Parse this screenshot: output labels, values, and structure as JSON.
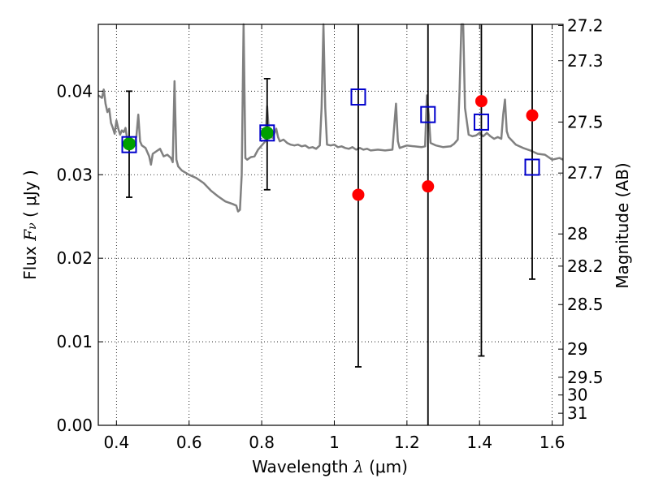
{
  "chart_data": {
    "type": "scatter",
    "xlabel": {
      "prefix": "Wavelength ",
      "math": "λ",
      "suffix": " (μm)"
    },
    "ylabel": {
      "prefix": "Flux ",
      "math": "F",
      "sub": "ν",
      "suffix": " ( μJy )"
    },
    "y2label": "Magnitude (AB)",
    "xlim": [
      0.35,
      1.63
    ],
    "ylim": [
      0.0,
      0.048
    ],
    "grid": true,
    "x_ticks": [
      {
        "v": 0.4,
        "label": "0.4"
      },
      {
        "v": 0.6,
        "label": "0.6"
      },
      {
        "v": 0.8,
        "label": "0.8"
      },
      {
        "v": 1.0,
        "label": "1"
      },
      {
        "v": 1.2,
        "label": "1.2"
      },
      {
        "v": 1.4,
        "label": "1.4"
      },
      {
        "v": 1.6,
        "label": "1.6"
      }
    ],
    "y_ticks": [
      {
        "v": 0.0,
        "label": "0.00"
      },
      {
        "v": 0.01,
        "label": "0.01"
      },
      {
        "v": 0.02,
        "label": "0.02"
      },
      {
        "v": 0.03,
        "label": "0.03"
      },
      {
        "v": 0.04,
        "label": "0.04"
      }
    ],
    "mag_ticks": [
      "27.2",
      "27.3",
      "27.5",
      "27.7",
      "28",
      "28.2",
      "28.5",
      "29",
      "29.5",
      "30",
      "31"
    ],
    "model_spectrum": {
      "color": "#808080",
      "points": [
        [
          0.35,
          0.0395
        ],
        [
          0.36,
          0.0392
        ],
        [
          0.365,
          0.0402
        ],
        [
          0.37,
          0.0385
        ],
        [
          0.375,
          0.0375
        ],
        [
          0.38,
          0.0379
        ],
        [
          0.385,
          0.0362
        ],
        [
          0.39,
          0.0356
        ],
        [
          0.395,
          0.0349
        ],
        [
          0.4,
          0.0365
        ],
        [
          0.405,
          0.0355
        ],
        [
          0.41,
          0.0348
        ],
        [
          0.415,
          0.0353
        ],
        [
          0.42,
          0.0351
        ],
        [
          0.425,
          0.0356
        ],
        [
          0.43,
          0.0341
        ],
        [
          0.44,
          0.0335
        ],
        [
          0.45,
          0.0338
        ],
        [
          0.455,
          0.0346
        ],
        [
          0.46,
          0.0372
        ],
        [
          0.465,
          0.034
        ],
        [
          0.47,
          0.0335
        ],
        [
          0.48,
          0.0332
        ],
        [
          0.49,
          0.0322
        ],
        [
          0.495,
          0.0312
        ],
        [
          0.5,
          0.0325
        ],
        [
          0.51,
          0.0328
        ],
        [
          0.52,
          0.0331
        ],
        [
          0.53,
          0.0322
        ],
        [
          0.54,
          0.0324
        ],
        [
          0.55,
          0.032
        ],
        [
          0.555,
          0.0315
        ],
        [
          0.56,
          0.0412
        ],
        [
          0.565,
          0.0318
        ],
        [
          0.57,
          0.031
        ],
        [
          0.58,
          0.0305
        ],
        [
          0.6,
          0.03
        ],
        [
          0.62,
          0.0296
        ],
        [
          0.64,
          0.029
        ],
        [
          0.66,
          0.0281
        ],
        [
          0.68,
          0.0274
        ],
        [
          0.7,
          0.0268
        ],
        [
          0.72,
          0.0265
        ],
        [
          0.73,
          0.0263
        ],
        [
          0.735,
          0.0256
        ],
        [
          0.74,
          0.0258
        ],
        [
          0.745,
          0.03
        ],
        [
          0.75,
          0.048
        ],
        [
          0.755,
          0.032
        ],
        [
          0.76,
          0.0318
        ],
        [
          0.77,
          0.0321
        ],
        [
          0.78,
          0.0322
        ],
        [
          0.79,
          0.033
        ],
        [
          0.8,
          0.0335
        ],
        [
          0.81,
          0.034
        ],
        [
          0.815,
          0.0382
        ],
        [
          0.82,
          0.035
        ],
        [
          0.83,
          0.0344
        ],
        [
          0.84,
          0.0355
        ],
        [
          0.845,
          0.0345
        ],
        [
          0.85,
          0.034
        ],
        [
          0.86,
          0.0342
        ],
        [
          0.87,
          0.0338
        ],
        [
          0.88,
          0.0336
        ],
        [
          0.89,
          0.0335
        ],
        [
          0.9,
          0.0336
        ],
        [
          0.91,
          0.0334
        ],
        [
          0.92,
          0.0335
        ],
        [
          0.93,
          0.0332
        ],
        [
          0.94,
          0.0333
        ],
        [
          0.95,
          0.0331
        ],
        [
          0.96,
          0.0335
        ],
        [
          0.965,
          0.038
        ],
        [
          0.97,
          0.048
        ],
        [
          0.975,
          0.038
        ],
        [
          0.98,
          0.0336
        ],
        [
          0.99,
          0.0335
        ],
        [
          1.0,
          0.0336
        ],
        [
          1.01,
          0.0333
        ],
        [
          1.02,
          0.0334
        ],
        [
          1.03,
          0.0332
        ],
        [
          1.04,
          0.0331
        ],
        [
          1.05,
          0.0333
        ],
        [
          1.06,
          0.033
        ],
        [
          1.07,
          0.0332
        ],
        [
          1.08,
          0.033
        ],
        [
          1.09,
          0.0331
        ],
        [
          1.1,
          0.0329
        ],
        [
          1.12,
          0.033
        ],
        [
          1.14,
          0.0329
        ],
        [
          1.16,
          0.033
        ],
        [
          1.165,
          0.0358
        ],
        [
          1.17,
          0.0385
        ],
        [
          1.175,
          0.034
        ],
        [
          1.18,
          0.0332
        ],
        [
          1.2,
          0.0335
        ],
        [
          1.22,
          0.0334
        ],
        [
          1.24,
          0.0333
        ],
        [
          1.25,
          0.0334
        ],
        [
          1.255,
          0.0395
        ],
        [
          1.26,
          0.0372
        ],
        [
          1.265,
          0.0338
        ],
        [
          1.28,
          0.0335
        ],
        [
          1.3,
          0.0333
        ],
        [
          1.32,
          0.0334
        ],
        [
          1.33,
          0.0337
        ],
        [
          1.34,
          0.0342
        ],
        [
          1.345,
          0.04
        ],
        [
          1.35,
          0.048
        ],
        [
          1.355,
          0.048
        ],
        [
          1.36,
          0.038
        ],
        [
          1.37,
          0.0348
        ],
        [
          1.38,
          0.0346
        ],
        [
          1.39,
          0.0347
        ],
        [
          1.4,
          0.035
        ],
        [
          1.41,
          0.0346
        ],
        [
          1.42,
          0.035
        ],
        [
          1.43,
          0.0346
        ],
        [
          1.44,
          0.0343
        ],
        [
          1.45,
          0.0345
        ],
        [
          1.46,
          0.0343
        ],
        [
          1.465,
          0.0372
        ],
        [
          1.47,
          0.039
        ],
        [
          1.475,
          0.0352
        ],
        [
          1.48,
          0.0345
        ],
        [
          1.5,
          0.0336
        ],
        [
          1.52,
          0.0332
        ],
        [
          1.54,
          0.0329
        ],
        [
          1.56,
          0.0325
        ],
        [
          1.58,
          0.0324
        ],
        [
          1.6,
          0.0318
        ],
        [
          1.62,
          0.032
        ],
        [
          1.63,
          0.0318
        ]
      ]
    },
    "error_bars": [
      {
        "x": 0.435,
        "low": 0.0273,
        "high": 0.04
      },
      {
        "x": 0.815,
        "low": 0.0282,
        "high": 0.0415
      },
      {
        "x": 1.066,
        "low": 0.007,
        "high": 0.048
      },
      {
        "x": 1.258,
        "low": 0.0,
        "high": 0.048
      },
      {
        "x": 1.405,
        "low": 0.0083,
        "high": 0.048
      },
      {
        "x": 1.545,
        "low": 0.0175,
        "high": 0.048
      }
    ],
    "green_points": {
      "color": "#00a000",
      "points": [
        {
          "x": 0.435,
          "y": 0.0337
        },
        {
          "x": 0.815,
          "y": 0.035
        }
      ]
    },
    "red_points": {
      "color": "#ff0000",
      "points": [
        {
          "x": 1.066,
          "y": 0.0276
        },
        {
          "x": 1.258,
          "y": 0.0286
        },
        {
          "x": 1.405,
          "y": 0.0388
        },
        {
          "x": 1.545,
          "y": 0.0371
        }
      ]
    },
    "model_boxes": {
      "color": "#0000cc",
      "points": [
        {
          "x": 0.435,
          "y": 0.0336
        },
        {
          "x": 0.815,
          "y": 0.035
        },
        {
          "x": 1.066,
          "y": 0.0393
        },
        {
          "x": 1.258,
          "y": 0.0372
        },
        {
          "x": 1.405,
          "y": 0.0363
        },
        {
          "x": 1.545,
          "y": 0.0309
        }
      ]
    }
  }
}
